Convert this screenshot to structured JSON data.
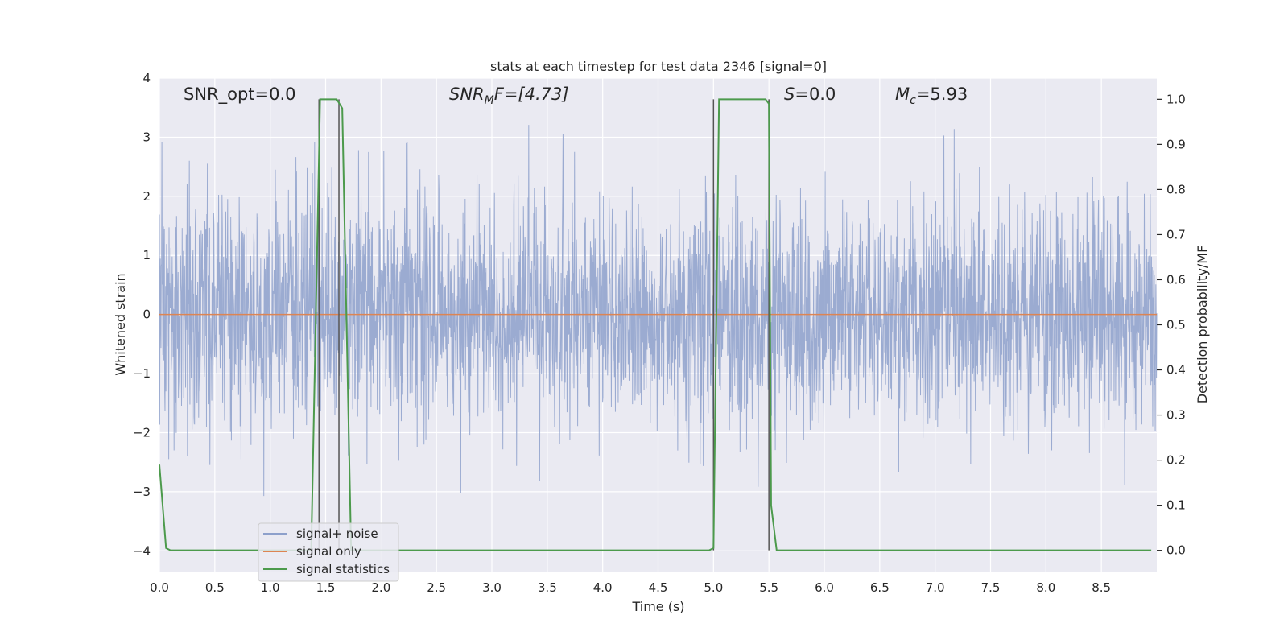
{
  "chart_data": {
    "type": "line",
    "title": "stats at each timestep for test data 2346 [signal=0]",
    "xlabel": "Time (s)",
    "ylabel": "Whitened strain",
    "y2label": "Detection probability/MF",
    "xlim": [
      0,
      9
    ],
    "ylim": [
      -4.35,
      4
    ],
    "y2lim": [
      -0.047,
      1.047
    ],
    "x_ticks": [
      0.0,
      0.5,
      1.0,
      1.5,
      2.0,
      2.5,
      3.0,
      3.5,
      4.0,
      4.5,
      5.0,
      5.5,
      6.0,
      6.5,
      7.0,
      7.5,
      8.0,
      8.5
    ],
    "x_tick_labels": [
      "0.0",
      "0.5",
      "1.0",
      "1.5",
      "2.0",
      "2.5",
      "3.0",
      "3.5",
      "4.0",
      "4.5",
      "5.0",
      "5.5",
      "6.0",
      "6.5",
      "7.0",
      "7.5",
      "8.0",
      "8.5"
    ],
    "y_ticks": [
      4,
      3,
      2,
      1,
      0,
      -1,
      -2,
      -3,
      -4
    ],
    "y_tick_labels": [
      "4",
      "3",
      "2",
      "1",
      "0",
      "−1",
      "−2",
      "−3",
      "−4"
    ],
    "y2_ticks": [
      1.0,
      0.9,
      0.8,
      0.7,
      0.6,
      0.5,
      0.4,
      0.3,
      0.2,
      0.1,
      0.0
    ],
    "y2_tick_labels": [
      "1.0",
      "0.9",
      "0.8",
      "0.7",
      "0.6",
      "0.5",
      "0.4",
      "0.3",
      "0.2",
      "0.1",
      "0.0"
    ],
    "grid": true,
    "legend_position": "lower-left",
    "annotations": {
      "snr_opt": "SNR_opt=0.0",
      "snr_mf_sym": "SNR",
      "snr_mf_sub": "M",
      "snr_mf_rest": "F=[4.73]",
      "s_sym": "S",
      "s_rest": "=0.0",
      "mc_sym": "M",
      "mc_sub": "c",
      "mc_rest": "=5.93"
    },
    "series": [
      {
        "name": "signal+ noise",
        "color": "#8da0cb",
        "description": "noisy whitened strain, approx. amplitude ±1.6 typical, peaks to about ±3",
        "noise_envelope": [
          -1.7,
          1.7
        ],
        "x_range": [
          0,
          9
        ]
      },
      {
        "name": "signal only",
        "color": "#dd8452",
        "x": [
          0,
          9
        ],
        "y": [
          0,
          0
        ]
      },
      {
        "name": "signal statistics",
        "color": "#4c9a4c",
        "axis": "y2",
        "x": [
          0.0,
          0.06,
          0.1,
          1.37,
          1.45,
          1.6,
          1.65,
          1.73,
          4.96,
          5.0,
          5.05,
          5.47,
          5.5,
          5.52,
          5.57,
          8.95
        ],
        "y": [
          0.19,
          0.005,
          0.0,
          0.0,
          1.0,
          1.0,
          0.98,
          0.0,
          0.0,
          0.005,
          1.0,
          1.0,
          0.99,
          0.1,
          0.0,
          0.0
        ]
      }
    ],
    "vertical_lines": [
      1.44,
      1.62,
      5.0,
      5.5
    ]
  }
}
